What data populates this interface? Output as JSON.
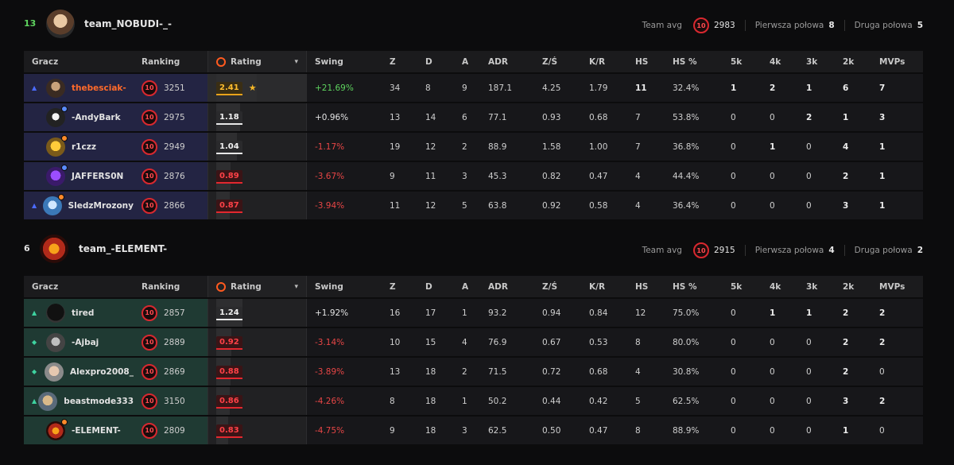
{
  "columns": [
    "Gracz",
    "Ranking",
    "Rating",
    "Swing",
    "Z",
    "D",
    "A",
    "ADR",
    "Z/Ś",
    "K/R",
    "HS",
    "HS %",
    "5k",
    "4k",
    "3k",
    "2k",
    "MVPs"
  ],
  "labels": {
    "team_avg": "Team avg",
    "first_half": "Pierwsza połowa",
    "second_half": "Druga połowa",
    "level": "10"
  },
  "teams": [
    {
      "score": "13",
      "name": "team_NOBUDI-_-",
      "avg": "2983",
      "first_half": "8",
      "second_half": "5",
      "colors": {
        "score": "#5ed35e"
      },
      "players": [
        {
          "name": "thebesciak-",
          "elo": "3251",
          "rating": "2.41",
          "rating_pct": 0.9,
          "swing": "+21.69%",
          "swing_type": "pos",
          "z": "34",
          "d": "8",
          "a": "9",
          "adr": "187.1",
          "zs": "4.25",
          "kr": "1.79",
          "hs": "11",
          "hsp": "32.4%",
          "k5": "1",
          "k4": "2",
          "k3": "1",
          "k2": "6",
          "mvps": "7",
          "arrow": "up-blue",
          "highlight": true,
          "mvp_star": true
        },
        {
          "name": "-AndyBark",
          "elo": "2975",
          "rating": "1.18",
          "rating_pct": 0.5,
          "swing": "+0.96%",
          "swing_type": "neu",
          "z": "13",
          "d": "14",
          "a": "6",
          "adr": "77.1",
          "zs": "0.93",
          "kr": "0.68",
          "hs": "7",
          "hsp": "53.8%",
          "k5": "0",
          "k4": "0",
          "k3": "2",
          "k2": "1",
          "mvps": "3",
          "arrow": "",
          "highlight": false
        },
        {
          "name": "r1czz",
          "elo": "2949",
          "rating": "1.04",
          "rating_pct": 0.43,
          "swing": "-1.17%",
          "swing_type": "neg",
          "z": "19",
          "d": "12",
          "a": "2",
          "adr": "88.9",
          "zs": "1.58",
          "kr": "1.00",
          "hs": "7",
          "hsp": "36.8%",
          "k5": "0",
          "k4": "1",
          "k3": "0",
          "k2": "4",
          "mvps": "1",
          "arrow": "",
          "highlight": false
        },
        {
          "name": "JAFFERS0N",
          "elo": "2876",
          "rating": "0.89",
          "rating_pct": 0.3,
          "swing": "-3.67%",
          "swing_type": "neg",
          "z": "9",
          "d": "11",
          "a": "3",
          "adr": "45.3",
          "zs": "0.82",
          "kr": "0.47",
          "hs": "4",
          "hsp": "44.4%",
          "k5": "0",
          "k4": "0",
          "k3": "0",
          "k2": "2",
          "mvps": "1",
          "arrow": "",
          "highlight": false
        },
        {
          "name": "SledzMrozony",
          "elo": "2866",
          "rating": "0.87",
          "rating_pct": 0.28,
          "swing": "-3.94%",
          "swing_type": "neg",
          "z": "11",
          "d": "12",
          "a": "5",
          "adr": "63.8",
          "zs": "0.92",
          "kr": "0.58",
          "hs": "4",
          "hsp": "36.4%",
          "k5": "0",
          "k4": "0",
          "k3": "0",
          "k2": "3",
          "mvps": "1",
          "arrow": "up-blue",
          "highlight": false
        }
      ]
    },
    {
      "score": "6",
      "name": "team_-ELEMENT-",
      "avg": "2915",
      "first_half": "4",
      "second_half": "2",
      "colors": {
        "score": "#e2e2e2"
      },
      "players": [
        {
          "name": "tired",
          "elo": "2857",
          "rating": "1.24",
          "rating_pct": 0.55,
          "swing": "+1.92%",
          "swing_type": "neu",
          "z": "16",
          "d": "17",
          "a": "1",
          "adr": "93.2",
          "zs": "0.94",
          "kr": "0.84",
          "hs": "12",
          "hsp": "75.0%",
          "k5": "0",
          "k4": "1",
          "k3": "1",
          "k2": "2",
          "mvps": "2",
          "arrow": "up-green",
          "highlight": false
        },
        {
          "name": "-Ajbaj",
          "elo": "2889",
          "rating": "0.92",
          "rating_pct": 0.32,
          "swing": "-3.14%",
          "swing_type": "neg",
          "z": "10",
          "d": "15",
          "a": "4",
          "adr": "76.9",
          "zs": "0.67",
          "kr": "0.53",
          "hs": "8",
          "hsp": "80.0%",
          "k5": "0",
          "k4": "0",
          "k3": "0",
          "k2": "2",
          "mvps": "2",
          "arrow": "diamond-green",
          "highlight": false
        },
        {
          "name": "Alexpro2008_",
          "elo": "2869",
          "rating": "0.88",
          "rating_pct": 0.3,
          "swing": "-3.89%",
          "swing_type": "neg",
          "z": "13",
          "d": "18",
          "a": "2",
          "adr": "71.5",
          "zs": "0.72",
          "kr": "0.68",
          "hs": "4",
          "hsp": "30.8%",
          "k5": "0",
          "k4": "0",
          "k3": "0",
          "k2": "2",
          "mvps": "0",
          "arrow": "diamond-green",
          "highlight": false
        },
        {
          "name": "beastmode333",
          "elo": "3150",
          "rating": "0.86",
          "rating_pct": 0.28,
          "swing": "-4.26%",
          "swing_type": "neg",
          "z": "8",
          "d": "18",
          "a": "1",
          "adr": "50.2",
          "zs": "0.44",
          "kr": "0.42",
          "hs": "5",
          "hsp": "62.5%",
          "k5": "0",
          "k4": "0",
          "k3": "0",
          "k2": "3",
          "mvps": "2",
          "arrow": "up-green",
          "highlight": false
        },
        {
          "name": "-ELEMENT-",
          "elo": "2809",
          "rating": "0.83",
          "rating_pct": 0.25,
          "swing": "-4.75%",
          "swing_type": "neg",
          "z": "9",
          "d": "18",
          "a": "3",
          "adr": "62.5",
          "zs": "0.50",
          "kr": "0.47",
          "hs": "8",
          "hsp": "88.9%",
          "k5": "0",
          "k4": "0",
          "k3": "0",
          "k2": "1",
          "mvps": "0",
          "arrow": "",
          "highlight": false
        }
      ]
    }
  ]
}
